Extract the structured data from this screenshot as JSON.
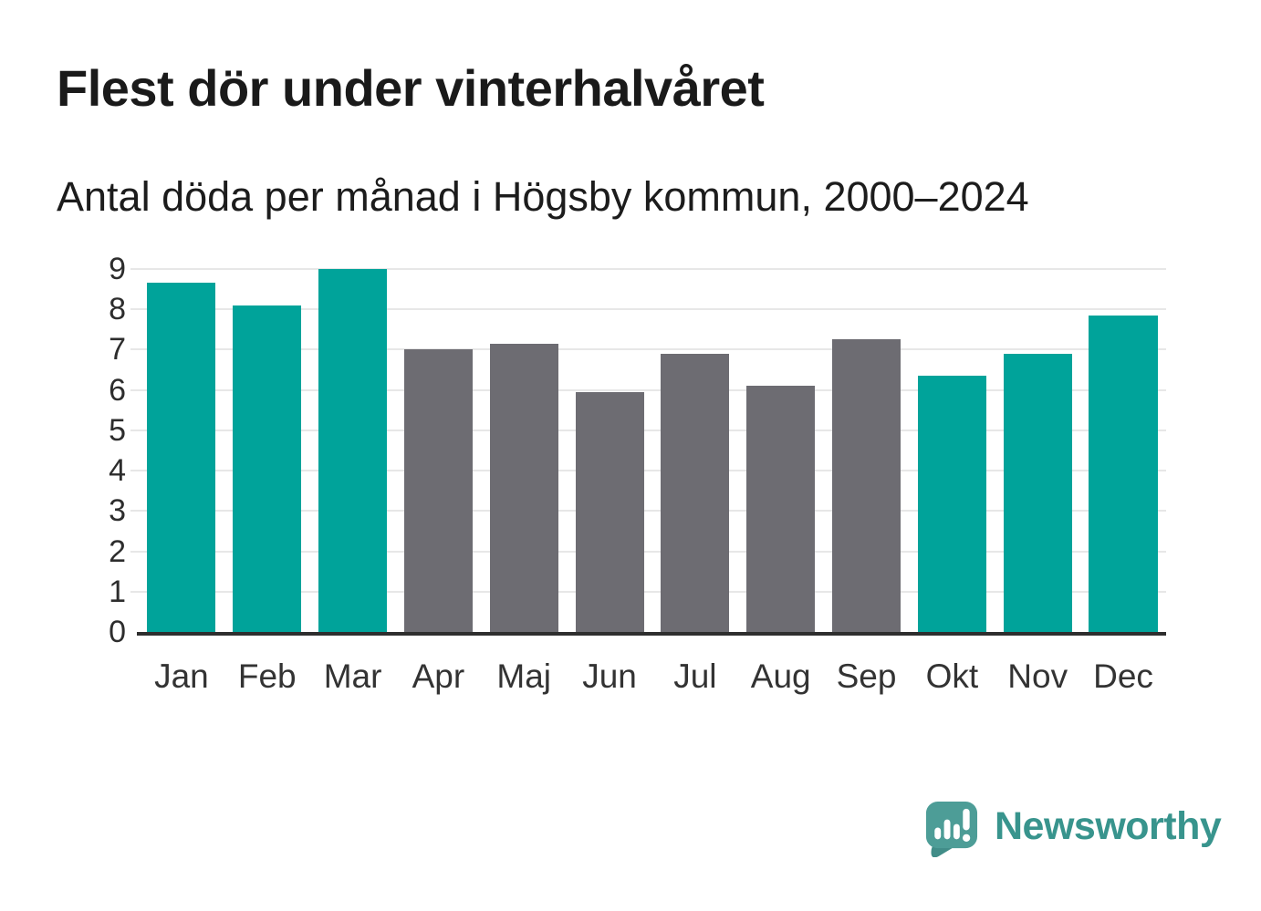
{
  "header": {
    "title": "Flest dör under vinterhalvåret",
    "subtitle": "Antal döda per månad i Högsby kommun, 2000–2024"
  },
  "chart_data": {
    "type": "bar",
    "title": "Flest dör under vinterhalvåret",
    "subtitle": "Antal döda per månad i Högsby kommun, 2000–2024",
    "categories": [
      "Jan",
      "Feb",
      "Mar",
      "Apr",
      "Maj",
      "Jun",
      "Jul",
      "Aug",
      "Sep",
      "Okt",
      "Nov",
      "Dec"
    ],
    "values": [
      8.65,
      8.1,
      9.0,
      7.0,
      7.15,
      5.95,
      6.9,
      6.1,
      7.25,
      6.35,
      6.9,
      7.85
    ],
    "bar_colors": [
      "#00a39a",
      "#00a39a",
      "#00a39a",
      "#6d6c72",
      "#6d6c72",
      "#6d6c72",
      "#6d6c72",
      "#6d6c72",
      "#6d6c72",
      "#00a39a",
      "#00a39a",
      "#00a39a"
    ],
    "color_meaning": {
      "winter_months": "#00a39a",
      "summer_months": "#6d6c72"
    },
    "xlabel": "",
    "ylabel": "",
    "ylim": [
      0,
      9
    ],
    "yticks": [
      0,
      1,
      2,
      3,
      4,
      5,
      6,
      7,
      8,
      9
    ],
    "grid": "horizontal",
    "legend": "none",
    "gridline_color": "#e7e7e7",
    "axis_line_color": "#2e2e2e"
  },
  "footer": {
    "brand": "Newsworthy",
    "brand_color": "#38948d",
    "icon_color": "#4d9d97"
  }
}
